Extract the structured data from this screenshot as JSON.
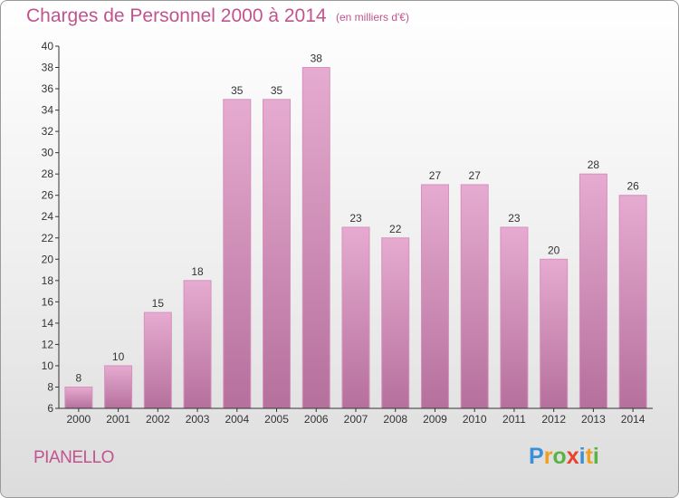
{
  "header": {
    "title": "Charges de Personnel 2000 à 2014",
    "subtitle": "(en milliers d'€)"
  },
  "footer": {
    "commune": "PIANELLO",
    "logo_letters": [
      "P",
      "r",
      "o",
      "x",
      "i",
      "t",
      "i"
    ],
    "logo_colors": [
      "#3a8fd8",
      "#f0a01e",
      "#58b443",
      "#e8432e",
      "#3a8fd8",
      "#f0a01e",
      "#58b443"
    ]
  },
  "colors": {
    "bar_top": "#e6abd0",
    "bar_bottom": "#b5709c",
    "bar_edge": "#d790bd",
    "text": "#c0548f",
    "axis": "#333333"
  },
  "chart_data": {
    "type": "bar",
    "title": "Charges de Personnel 2000 à 2014",
    "subtitle": "(en milliers d'€)",
    "categories": [
      "2000",
      "2001",
      "2002",
      "2003",
      "2004",
      "2005",
      "2006",
      "2007",
      "2008",
      "2009",
      "2010",
      "2011",
      "2012",
      "2013",
      "2014"
    ],
    "values": [
      8,
      10,
      15,
      18,
      35,
      35,
      38,
      23,
      22,
      27,
      27,
      23,
      20,
      28,
      26
    ],
    "xlabel": "",
    "ylabel": "",
    "ylim": [
      6,
      40
    ],
    "yticks": [
      6,
      8,
      10,
      12,
      14,
      16,
      18,
      20,
      22,
      24,
      26,
      28,
      30,
      32,
      34,
      36,
      38,
      40
    ],
    "grid": false,
    "legend": "none"
  }
}
